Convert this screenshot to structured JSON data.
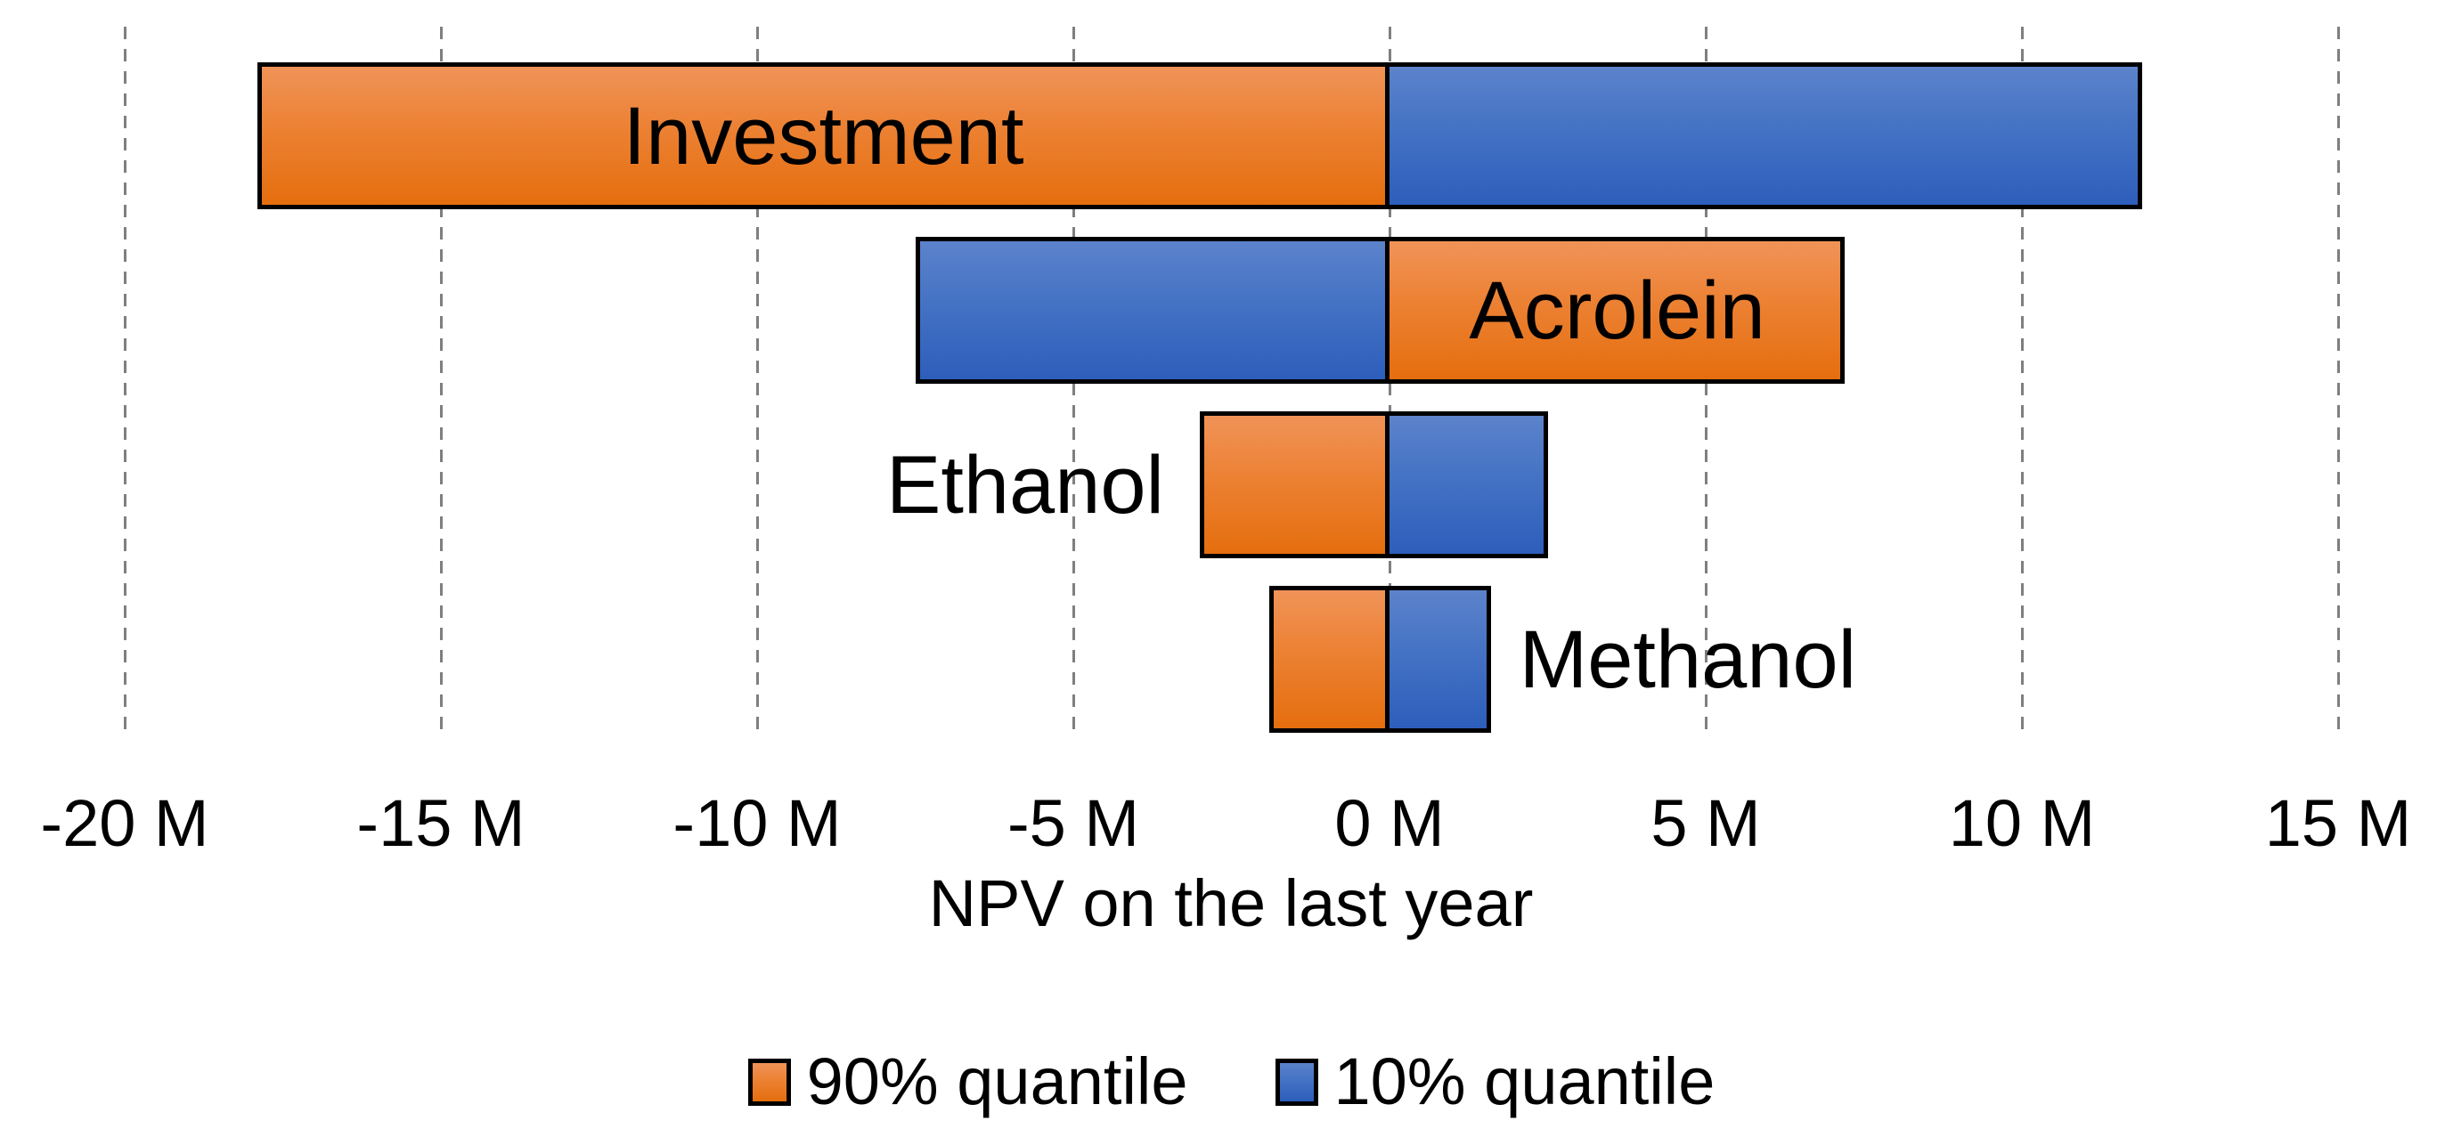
{
  "chart_data": {
    "type": "bar",
    "subtype": "tornado-diverging-horizontal-stacked",
    "title": "",
    "xlabel": "NPV on the last year",
    "x_unit": "M",
    "xlim": [
      -22,
      16.7
    ],
    "x_tick_values": [
      -20,
      -15,
      -10,
      -5,
      0,
      5,
      10,
      15
    ],
    "x_tick_labels": [
      "-20 M",
      "-15 M",
      "-10 M",
      "-5 M",
      "0 M",
      "5 M",
      "10 M",
      "15 M"
    ],
    "grid": "vertical-dashed-gray",
    "gridline_color": "#7f7f7f",
    "bar_border_color": "#000000",
    "legend_position": "bottom-center",
    "series": [
      {
        "name": "90% quantile",
        "color": "#ED7D31",
        "gradient_top": "#F09358",
        "gradient_bottom": "#E56E0E",
        "css_class": "seg-orange"
      },
      {
        "name": "10% quantile",
        "color": "#4472C4",
        "gradient_top": "#5C83CB",
        "gradient_bottom": "#2D5EBB",
        "css_class": "seg-blue"
      }
    ],
    "bars": [
      {
        "category": "Investment",
        "label_placement": "inside",
        "label_segment": 0,
        "segments": [
          {
            "series": "90% quantile",
            "from": -17.9,
            "to": 0
          },
          {
            "series": "10% quantile",
            "from": 0,
            "to": 11.9
          }
        ]
      },
      {
        "category": "Acrolein",
        "label_placement": "inside",
        "label_segment": 1,
        "segments": [
          {
            "series": "10% quantile",
            "from": -7.5,
            "to": 0
          },
          {
            "series": "90% quantile",
            "from": 0,
            "to": 7.2
          }
        ]
      },
      {
        "category": "Ethanol",
        "label_placement": "left",
        "segments": [
          {
            "series": "90% quantile",
            "from": -3.0,
            "to": 0
          },
          {
            "series": "10% quantile",
            "from": 0,
            "to": 2.5
          }
        ]
      },
      {
        "category": "Methanol",
        "label_placement": "right",
        "segments": [
          {
            "series": "90% quantile",
            "from": -1.9,
            "to": 0
          },
          {
            "series": "10% quantile",
            "from": 0,
            "to": 1.6
          }
        ]
      }
    ],
    "legend": [
      "90% quantile",
      "10% quantile"
    ]
  }
}
